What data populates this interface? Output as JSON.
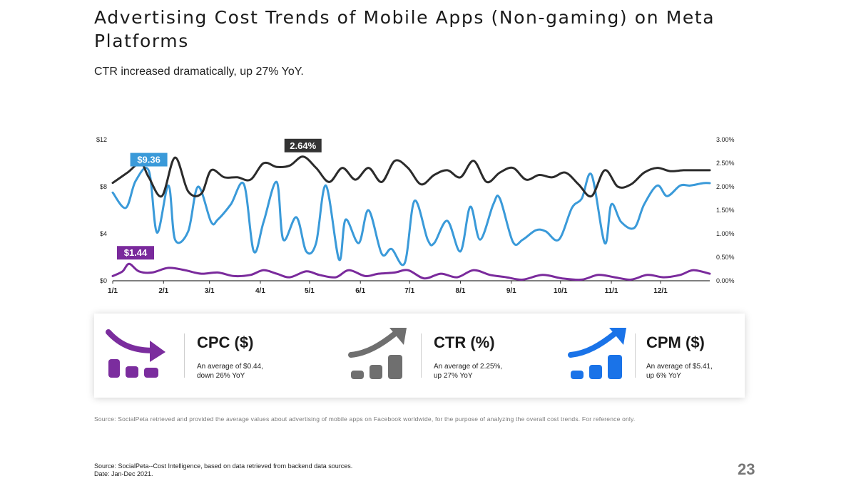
{
  "slide": {
    "title": "Advertising Cost Trends of Mobile Apps (Non-gaming) on Meta Platforms",
    "subtitle": "CTR increased dramatically, up 27% YoY.",
    "page_number": "23"
  },
  "chart_data": {
    "type": "line",
    "title": "",
    "x_tick_labels": [
      "1/1",
      "2/1",
      "3/1",
      "4/1",
      "5/1",
      "6/1",
      "7/1",
      "8/1",
      "9/1",
      "10/1",
      "11/1",
      "12/1"
    ],
    "x_range": [
      0,
      364
    ],
    "left_axis": {
      "label": "",
      "range": [
        0,
        12
      ],
      "tick_labels": [
        "$0",
        "$4",
        "$8",
        "$12"
      ]
    },
    "right_axis": {
      "label": "",
      "range": [
        0,
        3
      ],
      "tick_labels": [
        "0.00%",
        "0.50%",
        "1.00%",
        "1.50%",
        "2.00%",
        "2.50%",
        "3.00%"
      ]
    },
    "series": [
      {
        "name": "CTR (%)",
        "axis": "right",
        "color": "#2b2b2b",
        "x": [
          0,
          9,
          17,
          22,
          30,
          38,
          46,
          54,
          60,
          68,
          76,
          84,
          92,
          100,
          108,
          116,
          124,
          132,
          140,
          148,
          156,
          164,
          172,
          180,
          188,
          196,
          204,
          212,
          220,
          228,
          236,
          244,
          252,
          260,
          268,
          276,
          284,
          292,
          300,
          308,
          316,
          324,
          332,
          340,
          348,
          356,
          364
        ],
        "values": [
          2.08,
          2.3,
          2.5,
          2.2,
          1.8,
          2.62,
          1.9,
          1.85,
          2.35,
          2.2,
          2.2,
          2.15,
          2.5,
          2.42,
          2.45,
          2.64,
          2.4,
          2.1,
          2.4,
          2.15,
          2.4,
          2.1,
          2.55,
          2.4,
          2.05,
          2.25,
          2.35,
          2.2,
          2.55,
          2.1,
          2.3,
          2.4,
          2.15,
          2.25,
          2.2,
          2.3,
          2.05,
          1.8,
          2.35,
          2.0,
          2.05,
          2.3,
          2.4,
          2.33,
          2.35,
          2.35,
          2.35
        ],
        "callout": {
          "label": "2.64%",
          "x": 116
        }
      },
      {
        "name": "CPM ($)",
        "axis": "left",
        "color": "#3a9ad9",
        "x": [
          0,
          8,
          14,
          22,
          27,
          34,
          38,
          46,
          52,
          60,
          64,
          72,
          80,
          86,
          92,
          100,
          104,
          112,
          118,
          124,
          130,
          138,
          142,
          150,
          156,
          164,
          170,
          178,
          184,
          192,
          196,
          204,
          212,
          218,
          224,
          232,
          236,
          244,
          250,
          258,
          264,
          272,
          280,
          286,
          292,
          300,
          304,
          310,
          318,
          324,
          332,
          338,
          346,
          352,
          360,
          364
        ],
        "values": [
          7.5,
          6.2,
          8.5,
          9.36,
          4.1,
          8.1,
          3.5,
          4.2,
          8.0,
          5.0,
          5.2,
          6.5,
          8.2,
          2.5,
          5.0,
          8.4,
          3.5,
          5.4,
          2.5,
          3.2,
          8.1,
          1.8,
          5.2,
          3.2,
          6.0,
          2.3,
          2.7,
          1.5,
          6.8,
          3.5,
          3.2,
          5.1,
          2.5,
          6.3,
          3.5,
          6.5,
          7.0,
          3.3,
          3.5,
          4.3,
          4.2,
          3.5,
          6.2,
          7.0,
          9.0,
          3.2,
          6.5,
          5.0,
          4.5,
          6.5,
          8.1,
          7.2,
          8.1,
          8.1,
          8.3,
          8.3
        ],
        "callout": {
          "label": "$9.36",
          "x": 22
        }
      },
      {
        "name": "CPC ($)",
        "axis": "left",
        "color": "#7a2a9c",
        "x": [
          0,
          6,
          10,
          16,
          24,
          34,
          44,
          54,
          64,
          74,
          84,
          92,
          100,
          108,
          118,
          126,
          136,
          144,
          154,
          162,
          172,
          180,
          190,
          200,
          210,
          220,
          230,
          240,
          250,
          262,
          274,
          286,
          296,
          306,
          316,
          326,
          336,
          346,
          354,
          364
        ],
        "values": [
          0.4,
          0.8,
          1.44,
          0.8,
          0.7,
          1.1,
          0.9,
          0.6,
          0.7,
          0.4,
          0.5,
          0.9,
          0.6,
          0.3,
          0.8,
          0.5,
          0.3,
          0.9,
          0.4,
          0.6,
          0.7,
          0.9,
          0.2,
          0.6,
          0.3,
          0.9,
          0.5,
          0.3,
          0.1,
          0.5,
          0.2,
          0.1,
          0.5,
          0.3,
          0.1,
          0.5,
          0.3,
          0.5,
          0.9,
          0.6
        ],
        "callout": {
          "label": "$1.44",
          "x": 10
        }
      }
    ]
  },
  "metrics": [
    {
      "name": "CPC ($)",
      "desc_line1": "An average of $0.44,",
      "desc_line2": "down 26% YoY",
      "color": "#7b2d9e"
    },
    {
      "name": "CTR (%)",
      "desc_line1": "An average of 2.25%,",
      "desc_line2": "up 27% YoY",
      "color": "#6f6f6f"
    },
    {
      "name": "CPM ($)",
      "desc_line1": "An average of $5.41,",
      "desc_line2": "up 6% YoY",
      "color": "#1a73e8"
    }
  ],
  "footer": {
    "source_note": "Source: SocialPeta retrieved and provided the average values about advertising of mobile apps on Facebook worldwide, for the purpose of analyzing the overall cost trends. For reference only.",
    "source_line1": "Source: SocialPeta--Cost Intelligence, based on data retrieved from backend data sources.",
    "source_line2": "Date: Jan-Dec 2021."
  }
}
